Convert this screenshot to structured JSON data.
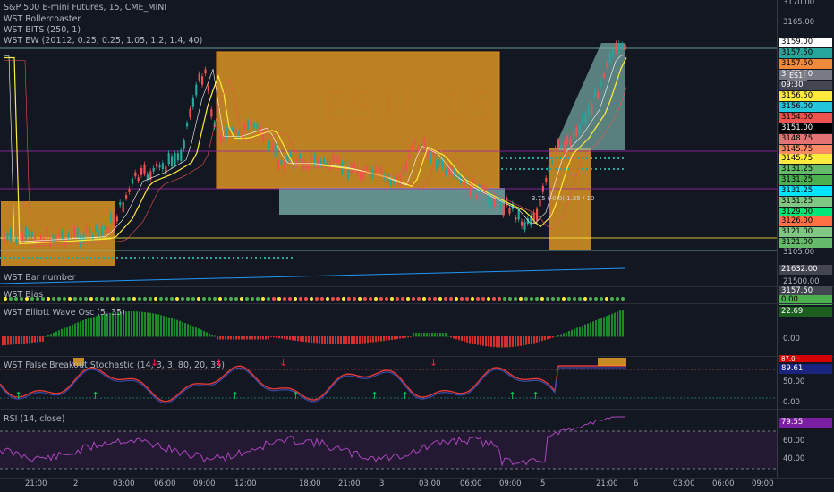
{
  "main": {
    "title": "S&P 500 E-mini Futures, 15, CME_MINI",
    "indicators": [
      "WST Rollercoaster",
      "WST BITS (250, 1)",
      "WST EW (20112, 0.25, 0.25, 1.05, 1.2, 1.4, 40)"
    ],
    "watermark": "ES1!, 15",
    "symbol_tag": "ES1!",
    "annotation": "3.75 (-0.0) 1.25 / 10",
    "price_ticks": [
      "3170.00",
      "3165.00",
      "3105.00"
    ],
    "price_tags": [
      {
        "text": "3159.00",
        "bg": "#ffffff",
        "fg": "#000000"
      },
      {
        "text": "3157.50",
        "bg": "#26a69a",
        "fg": "#000000"
      },
      {
        "text": "3157.50",
        "bg": "#ef8a3c",
        "fg": "#000000"
      },
      {
        "text": "3157.50",
        "bg": "#787b86",
        "fg": "#ffffff"
      },
      {
        "text": "09:30",
        "bg": "#434651",
        "fg": "#ffffff"
      },
      {
        "text": "3156.50",
        "bg": "#ffeb3b",
        "fg": "#000000"
      },
      {
        "text": "3156.00",
        "bg": "#26c6da",
        "fg": "#000000"
      },
      {
        "text": "3154.00",
        "bg": "#ef5350",
        "fg": "#000000"
      },
      {
        "text": "3151.00",
        "bg": "#000000",
        "fg": "#ffffff"
      },
      {
        "text": "3148.75",
        "bg": "#e57373",
        "fg": "#000000"
      },
      {
        "text": "3145.75",
        "bg": "#ff8a65",
        "fg": "#000000"
      },
      {
        "text": "3145.75",
        "bg": "#ffeb3b",
        "fg": "#000000"
      },
      {
        "text": "3131.25",
        "bg": "#66bb6a",
        "fg": "#000000"
      },
      {
        "text": "3131.25",
        "bg": "#4caf50",
        "fg": "#000000"
      },
      {
        "text": "3131.25",
        "bg": "#00e5ff",
        "fg": "#000000"
      },
      {
        "text": "3131.25",
        "bg": "#81c784",
        "fg": "#000000"
      },
      {
        "text": "3129.00",
        "bg": "#00e676",
        "fg": "#000000"
      },
      {
        "text": "3126.00",
        "bg": "#ff7043",
        "fg": "#000000"
      },
      {
        "text": "3121.00",
        "bg": "#81c784",
        "fg": "#000000"
      },
      {
        "text": "3121.00",
        "bg": "#66bb6a",
        "fg": "#000000"
      }
    ]
  },
  "bar_number": {
    "title": "WST Bar number",
    "tags": [
      "21632.00",
      "21500.00"
    ]
  },
  "bias": {
    "title": "WST Bias",
    "tags": [
      "3157.50",
      "0.00"
    ]
  },
  "elliott": {
    "title": "WST Elliott Wave Osc (5, 35)",
    "value": "22.69",
    "ticks": [
      "0.00"
    ]
  },
  "stoch": {
    "title": "WST False Breakout Stochastic (14, 3, 3, 80, 20, 35)",
    "value": "89.61",
    "top": "87.0",
    "ticks": [
      "50.00",
      "0.00"
    ]
  },
  "rsi": {
    "title": "RSI (14, close)",
    "value": "79.55",
    "ticks": [
      "60.00",
      "40.00"
    ]
  },
  "time_axis": [
    "21:00",
    "2",
    "03:00",
    "06:00",
    "09:00",
    "12:00",
    "18:00",
    "21:00",
    "3",
    "03:00",
    "06:00",
    "09:00",
    "5",
    "21:00",
    "6",
    "03:00",
    "06:00",
    "09:00"
  ],
  "colors": {
    "bg": "#131722",
    "up": "#26a69a",
    "down": "#ef5350",
    "orange_box": "#f5a623",
    "teal_box": "#7fb8b0",
    "rsi": "#9c27b0"
  }
}
